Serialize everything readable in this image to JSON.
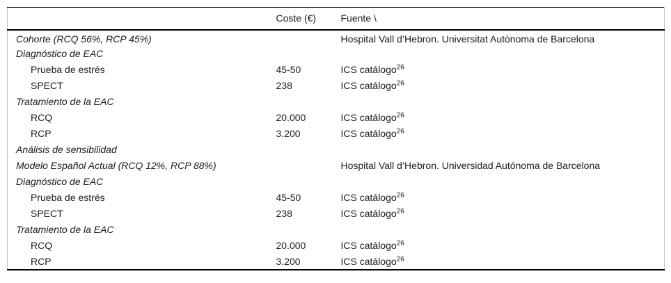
{
  "accent_colors": {
    "rule_black": "#000000",
    "edge_gray": "#c4c4c4",
    "text": "#1a1a1a",
    "background": "#ffffff"
  },
  "table": {
    "columns": {
      "item": "",
      "coste": "Coste (€)",
      "fuente": "Fuente \\"
    },
    "rows": [
      {
        "label": "Cohorte (RCQ 56%, RCP 45%)",
        "style": "section",
        "coste": "",
        "fuente": "Hospital Vall d’Hebron. Universitat Autònoma de Barcelona",
        "sup": ""
      },
      {
        "label": "Diagnóstico de EAC",
        "style": "section",
        "coste": "",
        "fuente": "",
        "sup": ""
      },
      {
        "label": "Prueba de estrés",
        "style": "item",
        "coste": "45-50",
        "fuente": "ICS catálogo",
        "sup": "26"
      },
      {
        "label": "SPECT",
        "style": "item",
        "coste": "238",
        "fuente": "ICS catálogo",
        "sup": "26"
      },
      {
        "label": "Tratamiento de la EAC",
        "style": "section",
        "coste": "",
        "fuente": "",
        "sup": ""
      },
      {
        "label": "RCQ",
        "style": "item",
        "coste": "20.000",
        "fuente": "ICS catálogo",
        "sup": "26"
      },
      {
        "label": "RCP",
        "style": "item",
        "coste": "3.200",
        "fuente": "ICS catálogo",
        "sup": "26"
      },
      {
        "label": "Análisis de sensibilidad",
        "style": "section",
        "coste": "",
        "fuente": "",
        "sup": ""
      },
      {
        "label": "Modelo Español Actual (RCQ 12%, RCP 88%)",
        "style": "section",
        "coste": "",
        "fuente": "Hospital Vall d’Hebron. Universidad Autónoma de Barcelona",
        "sup": ""
      },
      {
        "label": "Diagnóstico de EAC",
        "style": "section",
        "coste": "",
        "fuente": "",
        "sup": ""
      },
      {
        "label": "Prueba de estrés",
        "style": "item",
        "coste": "45-50",
        "fuente": "ICS catálogo",
        "sup": "26"
      },
      {
        "label": "SPECT",
        "style": "item",
        "coste": "238",
        "fuente": "ICS catálogo",
        "sup": "26"
      },
      {
        "label": "Tratamiento de la EAC",
        "style": "section",
        "coste": "",
        "fuente": "",
        "sup": ""
      },
      {
        "label": "RCQ",
        "style": "item",
        "coste": "20.000",
        "fuente": "ICS catálogo",
        "sup": "26"
      },
      {
        "label": "RCP",
        "style": "item",
        "coste": "3.200",
        "fuente": "ICS catálogo",
        "sup": "26"
      }
    ]
  }
}
